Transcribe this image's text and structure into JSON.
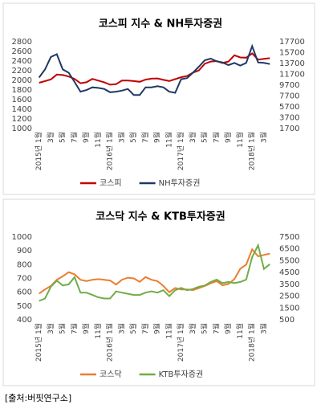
{
  "chart_data": [
    {
      "type": "line",
      "title": "코스피 지수 & NH투자증권",
      "categories": [
        "2015년 1월",
        null,
        "3월",
        null,
        "5월",
        null,
        "7월",
        null,
        "9월",
        null,
        "11월",
        null,
        "2016년 1월",
        null,
        "3월",
        null,
        "5월",
        null,
        "7월",
        null,
        "9월",
        null,
        "11월",
        null,
        "2017년 1월",
        null,
        "3월",
        null,
        "5월",
        null,
        "7월",
        null,
        "9월",
        null,
        "11월",
        null,
        "2018년 1월",
        null,
        "3월",
        null
      ],
      "series": [
        {
          "name": "코스피",
          "color": "#c00000",
          "values": [
            1950,
            1985,
            2020,
            2120,
            2110,
            2080,
            2030,
            1940,
            1960,
            2030,
            1995,
            1960,
            1910,
            1920,
            1995,
            1995,
            1985,
            1970,
            2015,
            2035,
            2040,
            2010,
            1985,
            2025,
            2065,
            2090,
            2160,
            2205,
            2345,
            2390,
            2400,
            2360,
            2390,
            2520,
            2475,
            2470,
            2560,
            2430,
            2445,
            2460
          ]
        },
        {
          "name": "NH투자증권",
          "color": "#1f3864",
          "axis": "y2",
          "values": [
            11100,
            12600,
            14900,
            15400,
            12600,
            12000,
            10300,
            8500,
            8800,
            9300,
            9200,
            9000,
            8400,
            8500,
            8700,
            9000,
            7900,
            7900,
            9300,
            9300,
            9500,
            9300,
            8500,
            8300,
            10800,
            11000,
            12000,
            13100,
            14300,
            14600,
            14100,
            13900,
            13400,
            13800,
            13300,
            13800,
            16900,
            13900,
            13800,
            13600
          ]
        }
      ],
      "ylim": [
        1000,
        2800
      ],
      "yticks": [
        1000,
        1200,
        1400,
        1600,
        1800,
        2000,
        2200,
        2400,
        2600,
        2800
      ],
      "y2lim": [
        1700,
        17700
      ],
      "y2ticks": [
        1700,
        3700,
        5700,
        7700,
        9700,
        11700,
        13700,
        15700,
        17700
      ],
      "legend": "bottom"
    },
    {
      "type": "line",
      "title": "코스닥 지수 & KTB투자증권",
      "categories": [
        "2015년 1월",
        null,
        "3월",
        null,
        "5월",
        null,
        "7월",
        null,
        "9월",
        null,
        "11월",
        null,
        "2016년 1월",
        null,
        "3월",
        null,
        "5월",
        null,
        "7월",
        null,
        "9월",
        null,
        "11월",
        null,
        "2017년 1월",
        null,
        "3월",
        null,
        "5월",
        null,
        "7월",
        null,
        "9월",
        null,
        "11월",
        null,
        "2018년 1월",
        null,
        "3월",
        null
      ],
      "series": [
        {
          "name": "코스닥",
          "color": "#ed7d31",
          "values": [
            590,
            620,
            645,
            690,
            715,
            745,
            730,
            690,
            680,
            690,
            695,
            690,
            685,
            655,
            690,
            705,
            700,
            675,
            710,
            690,
            680,
            645,
            600,
            630,
            620,
            620,
            615,
            630,
            645,
            665,
            680,
            650,
            660,
            695,
            770,
            800,
            910,
            860,
            870,
            880
          ]
        },
        {
          "name": "KTB투자증권",
          "color": "#70ad47",
          "axis": "y2",
          "values": [
            2100,
            2300,
            3300,
            3800,
            3400,
            3500,
            4100,
            2800,
            2800,
            2600,
            2400,
            2300,
            2300,
            2900,
            2800,
            2700,
            2600,
            2600,
            2800,
            2900,
            2800,
            3000,
            2500,
            3000,
            3200,
            3000,
            3100,
            3300,
            3400,
            3700,
            3900,
            3600,
            3700,
            3600,
            3700,
            3900,
            5800,
            6800,
            4800,
            5200
          ]
        }
      ],
      "ylim": [
        400,
        1000
      ],
      "yticks": [
        400,
        500,
        600,
        700,
        800,
        900,
        1000
      ],
      "y2lim": [
        500,
        7500
      ],
      "y2ticks": [
        500,
        1500,
        2500,
        3500,
        4500,
        5500,
        6500,
        7500
      ],
      "legend": "bottom"
    }
  ],
  "source": "[출처:버핏연구소]"
}
